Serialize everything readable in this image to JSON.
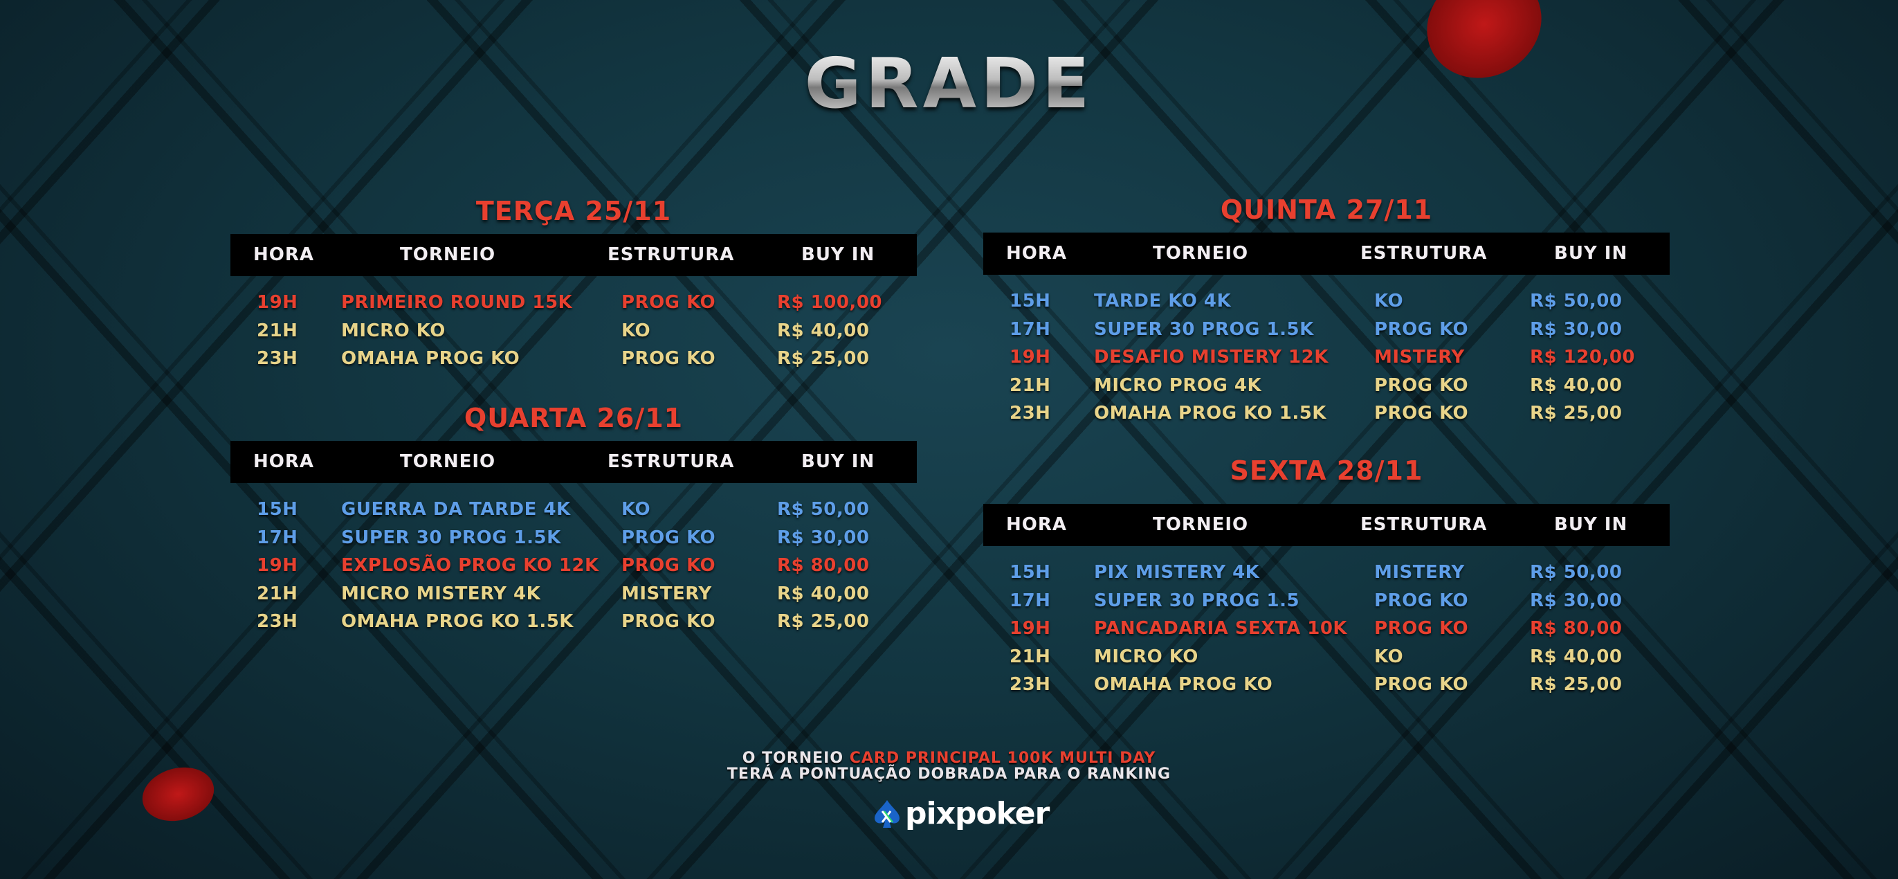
{
  "title": "GRADE",
  "colors": {
    "red": "#e8402f",
    "yellow": "#e8d48a",
    "blue": "#5e9ee8",
    "header_bg": "#000000"
  },
  "headers": {
    "hora": "HORA",
    "torneio": "TORNEIO",
    "estrutura": "ESTRUTURA",
    "buy_in": "BUY IN"
  },
  "days": [
    {
      "label": "TERÇA 25/11",
      "rows": [
        {
          "hora": "19H",
          "torneio": "PRIMEIRO ROUND 15K",
          "estrutura": "PROG KO",
          "buy_in": "R$ 100,00",
          "color": "red"
        },
        {
          "hora": "21H",
          "torneio": "MICRO KO",
          "estrutura": "KO",
          "buy_in": "R$ 40,00",
          "color": "yellow"
        },
        {
          "hora": "23H",
          "torneio": "OMAHA PROG KO",
          "estrutura": "PROG KO",
          "buy_in": "R$ 25,00",
          "color": "yellow"
        }
      ]
    },
    {
      "label": "QUARTA 26/11",
      "rows": [
        {
          "hora": "15H",
          "torneio": "GUERRA DA TARDE 4K",
          "estrutura": "KO",
          "buy_in": "R$ 50,00",
          "color": "blue"
        },
        {
          "hora": "17H",
          "torneio": "SUPER 30 PROG 1.5K",
          "estrutura": "PROG KO",
          "buy_in": "R$ 30,00",
          "color": "blue"
        },
        {
          "hora": "19H",
          "torneio": "EXPLOSÃO PROG KO 12K",
          "estrutura": "PROG KO",
          "buy_in": "R$ 80,00",
          "color": "red"
        },
        {
          "hora": "21H",
          "torneio": "MICRO MISTERY 4K",
          "estrutura": "MISTERY",
          "buy_in": "R$ 40,00",
          "color": "yellow"
        },
        {
          "hora": "23H",
          "torneio": "OMAHA PROG KO 1.5K",
          "estrutura": "PROG KO",
          "buy_in": "R$ 25,00",
          "color": "yellow"
        }
      ]
    },
    {
      "label": "QUINTA 27/11",
      "rows": [
        {
          "hora": "15H",
          "torneio": "TARDE KO 4K",
          "estrutura": "KO",
          "buy_in": "R$ 50,00",
          "color": "blue"
        },
        {
          "hora": "17H",
          "torneio": "SUPER 30 PROG 1.5K",
          "estrutura": "PROG KO",
          "buy_in": "R$ 30,00",
          "color": "blue"
        },
        {
          "hora": "19H",
          "torneio": "DESAFIO MISTERY 12K",
          "estrutura": "MISTERY",
          "buy_in": "R$ 120,00",
          "color": "red"
        },
        {
          "hora": "21H",
          "torneio": "MICRO PROG 4K",
          "estrutura": "PROG KO",
          "buy_in": "R$ 40,00",
          "color": "yellow"
        },
        {
          "hora": "23H",
          "torneio": "OMAHA PROG KO 1.5K",
          "estrutura": "PROG KO",
          "buy_in": "R$ 25,00",
          "color": "yellow"
        }
      ]
    },
    {
      "label": "SEXTA 28/11",
      "rows": [
        {
          "hora": "15H",
          "torneio": "PIX MISTERY 4K",
          "estrutura": "MISTERY",
          "buy_in": "R$ 50,00",
          "color": "blue"
        },
        {
          "hora": "17H",
          "torneio": "SUPER 30 PROG 1.5",
          "estrutura": "PROG KO",
          "buy_in": "R$ 30,00",
          "color": "blue"
        },
        {
          "hora": "19H",
          "torneio": "PANCADARIA SEXTA 10K",
          "estrutura": "PROG KO",
          "buy_in": "R$ 80,00",
          "color": "red"
        },
        {
          "hora": "21H",
          "torneio": "MICRO KO",
          "estrutura": "KO",
          "buy_in": "R$ 40,00",
          "color": "yellow"
        },
        {
          "hora": "23H",
          "torneio": "OMAHA PROG KO",
          "estrutura": "PROG KO",
          "buy_in": "R$ 25,00",
          "color": "yellow"
        }
      ]
    }
  ],
  "footer": {
    "line1_prefix": "O TORNEIO ",
    "line1_highlight": "CARD PRINCIPAL 100K MULTI DAY",
    "line2": "TERÁ A PONTUAÇÃO DOBRADA PARA O RANKING"
  },
  "logo": {
    "text": "pixpoker",
    "icon": "spade-icon"
  }
}
